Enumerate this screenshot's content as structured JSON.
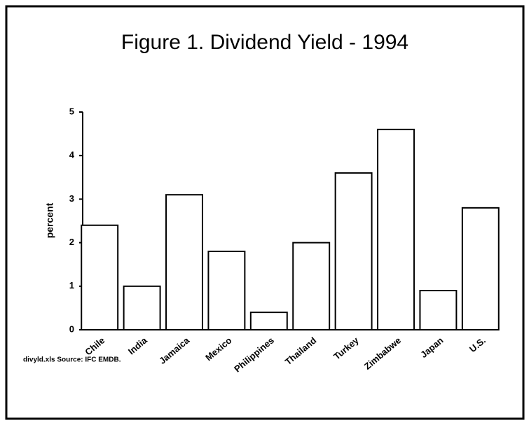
{
  "chart_data": {
    "type": "bar",
    "title": "Figure 1. Dividend Yield - 1994",
    "y_label": "percent",
    "categories": [
      "Chile",
      "India",
      "Jamaica",
      "Mexico",
      "Philippines",
      "Thailand",
      "Turkey",
      "Zimbabwe",
      "Japan",
      "U.S."
    ],
    "values": [
      2.4,
      1.0,
      3.1,
      1.8,
      0.4,
      2.0,
      3.6,
      4.6,
      0.9,
      2.8
    ],
    "color": "#ffffff",
    "ylim": [
      0,
      5
    ],
    "yticks": [
      0,
      1,
      2,
      3,
      4,
      5
    ],
    "grid": false,
    "source": "divyld.xls Source: IFC EMDB."
  }
}
